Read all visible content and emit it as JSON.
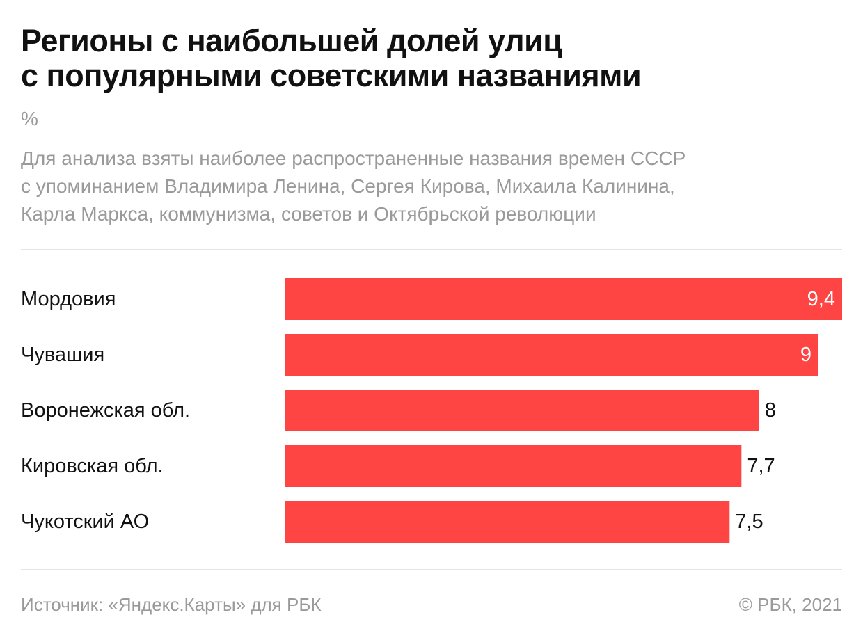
{
  "header": {
    "title_lines": [
      "Регионы с наибольшей долей улиц",
      "с популярными советскими названиями"
    ],
    "unit": "%",
    "subtitle_lines": [
      "Для анализа взяты наиболее распространенные названия времен СССР",
      "с упоминанием Владимира Ленина, Сергея Кирова, Михаила Калинина,",
      "Карла Маркса, коммунизма, советов и Октябрьской революции"
    ]
  },
  "footer": {
    "source": "Источник: «Яндекс.Карты» для РБК",
    "copyright": "© РБК, 2021"
  },
  "chart_data": {
    "type": "bar",
    "orientation": "horizontal",
    "categories": [
      "Мордовия",
      "Чувашия",
      "Воронежская обл.",
      "Кировская обл.",
      "Чукотский АО"
    ],
    "values": [
      9.4,
      9,
      8,
      7.7,
      7.5
    ],
    "value_labels": [
      "9,4",
      "9",
      "8",
      "7,7",
      "7,5"
    ],
    "bar_color": "#ff4444",
    "xlim": [
      0,
      9.4
    ],
    "grid": false,
    "legend": "none"
  }
}
